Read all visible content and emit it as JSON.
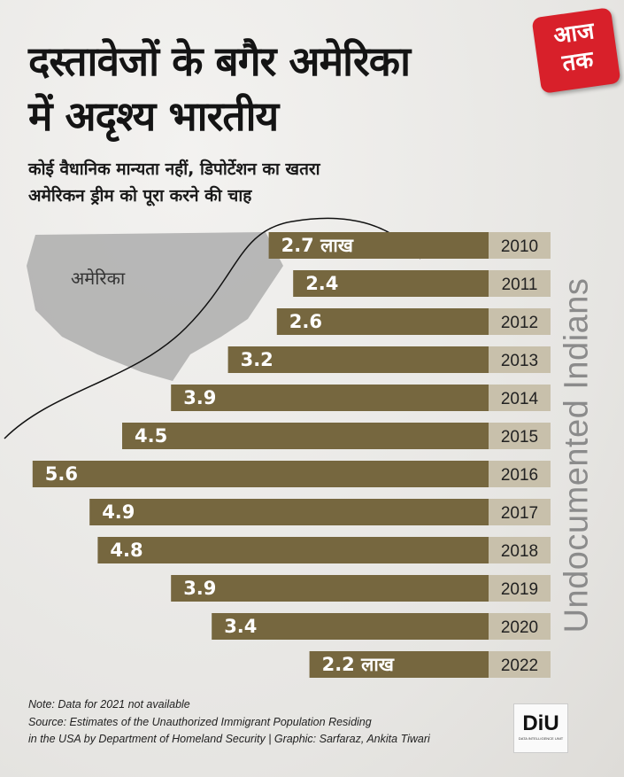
{
  "header": {
    "title_line1": "दस्तावेजों के बगैर अमेरिका",
    "title_line2": "में अदृश्य भारतीय",
    "subtitle_line1": "कोई वैधानिक मान्यता नहीं, डिपोर्टेशन का खतरा",
    "subtitle_line2": "अमेरिकन ड्रीम को पूरा करने की चाह"
  },
  "logo": {
    "line1": "आज",
    "line2": "तक"
  },
  "map_label": "अमेरिका",
  "chart_data": {
    "type": "bar",
    "orientation": "horizontal",
    "title": "Undocumented Indians",
    "categories": [
      "2010",
      "2011",
      "2012",
      "2013",
      "2014",
      "2015",
      "2016",
      "2017",
      "2018",
      "2019",
      "2020",
      "2022"
    ],
    "values": [
      2.7,
      2.4,
      2.6,
      3.2,
      3.9,
      4.5,
      5.6,
      4.9,
      4.8,
      3.9,
      3.4,
      2.2
    ],
    "value_labels": [
      "2.7 लाख",
      "2.4",
      "2.6",
      "3.2",
      "3.9",
      "4.5",
      "5.6",
      "4.9",
      "4.8",
      "3.9",
      "3.4",
      "2.2 लाख"
    ],
    "unit": "लाख",
    "colors": {
      "bar": "#76673f",
      "year_box": "#c8c0ab"
    }
  },
  "footer": {
    "note": "Note: Data for 2021 not available",
    "source_line1": "Source: Estimates of the Unauthorized Immigrant Population Residing",
    "source_line2": "in the USA by Department of Homeland Security | Graphic: Sarfaraz, Ankita Tiwari"
  },
  "diu": {
    "mark": "DiU",
    "tagline": "DATA INTELLIGENCE UNIT"
  }
}
